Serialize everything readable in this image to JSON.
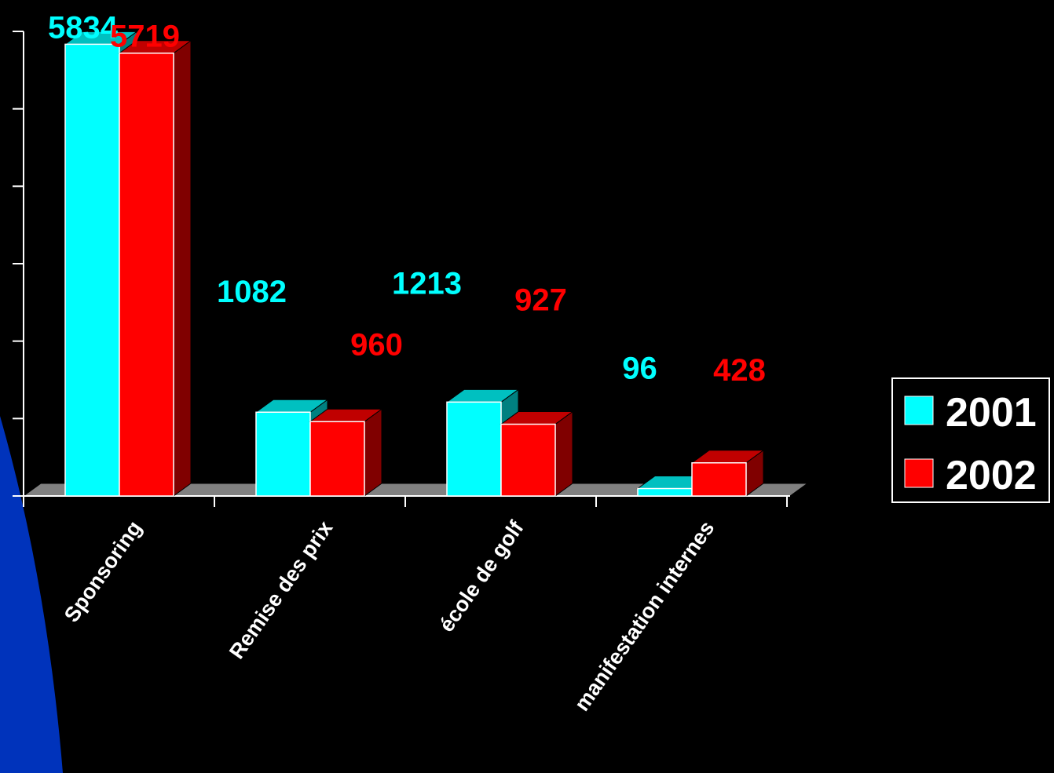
{
  "chart_data": {
    "type": "bar",
    "categories": [
      "Sponsoring",
      "Remise des prix",
      "école de golf",
      "manifestation internes"
    ],
    "series": [
      {
        "name": "2001",
        "values": [
          5834,
          1082,
          1213,
          96
        ],
        "color": "#00FFFF",
        "side_color": "#008080",
        "top_color": "#00C0C0"
      },
      {
        "name": "2002",
        "values": [
          5719,
          960,
          927,
          428
        ],
        "color": "#FF0000",
        "side_color": "#800000",
        "top_color": "#C00000"
      }
    ],
    "data_labels": [
      [
        "5834",
        "1082",
        "1213",
        "96"
      ],
      [
        "5719",
        "960",
        "927",
        "428"
      ]
    ],
    "ylim": [
      0,
      6000
    ],
    "grid": false,
    "legend_position": "right",
    "background": "#000000",
    "floor_color": "#808080",
    "accent_shape_color": "#0033BB"
  }
}
